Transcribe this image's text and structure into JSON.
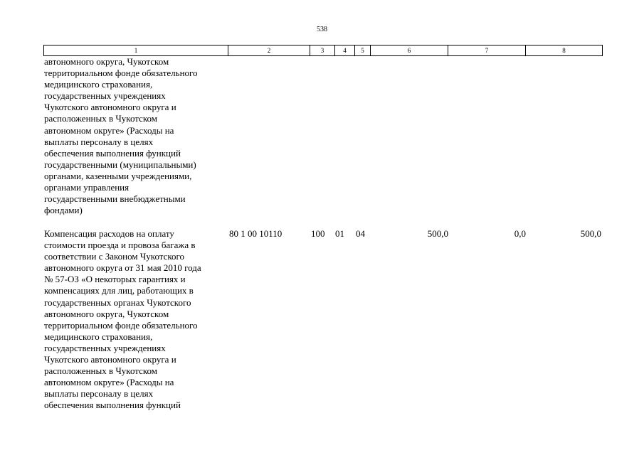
{
  "page_number": "538",
  "header_columns": [
    "1",
    "2",
    "3",
    "4",
    "5",
    "6",
    "7",
    "8"
  ],
  "continued_row": {
    "description_lines": [
      "автономного округа, Чукотском",
      "территориальном фонде обязательного",
      "медицинского страхования,",
      "государственных учреждениях",
      "Чукотского автономного округа и",
      "расположенных в Чукотском",
      "автономном округе» (Расходы на",
      "выплаты персоналу в целях",
      "обеспечения выполнения функций",
      "государственными (муниципальными)",
      "органами, казенными учреждениями,",
      "органами управления",
      "государственными внебюджетными",
      "фондами)"
    ]
  },
  "row": {
    "description_lines": [
      "Компенсация расходов на оплату",
      "стоимости проезда и провоза багажа в",
      "соответствии с Законом Чукотского",
      "автономного округа от 31 мая 2010 года",
      "№ 57-ОЗ «О некоторых гарантиях и",
      "компенсациях для лиц, работающих в",
      "государственных органах Чукотского",
      "автономного округа, Чукотском",
      "территориальном фонде обязательного",
      "медицинского страхования,",
      "государственных учреждениях",
      "Чукотского автономного округа и",
      "расположенных в Чукотском",
      "автономном округе» (Расходы на",
      "выплаты персоналу в целях",
      "обеспечения выполнения функций"
    ],
    "code": "80 1 00 10110",
    "expense_type": "100",
    "section": "01",
    "subsection": "04",
    "amount_1": "500,0",
    "amount_2": "0,0",
    "amount_3": "500,0"
  }
}
